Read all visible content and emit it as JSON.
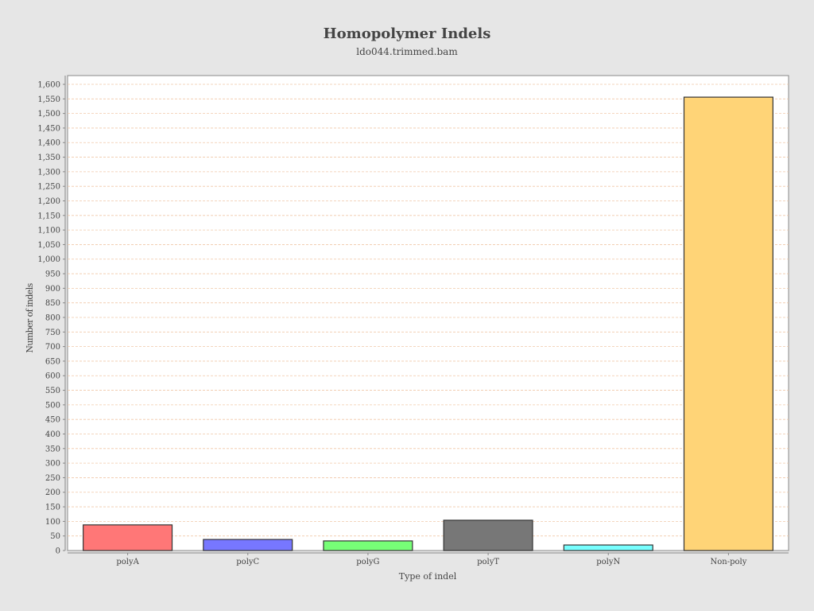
{
  "chart_data": {
    "type": "bar",
    "title": "Homopolymer Indels",
    "subtitle": "ldo044.trimmed.bam",
    "xlabel": "Type of indel",
    "ylabel": "Number of indels",
    "categories": [
      "polyA",
      "polyC",
      "polyG",
      "polyT",
      "polyN",
      "Non-poly"
    ],
    "values": [
      88,
      38,
      33,
      104,
      19,
      1556
    ],
    "colors": [
      "#ff7777",
      "#7777ff",
      "#77ff77",
      "#777777",
      "#77ffff",
      "#ffd477"
    ],
    "bar_border_color": "#333333",
    "ylim": [
      0,
      1630
    ],
    "ytick_step": 50,
    "ytick_labels": [
      "0",
      "50",
      "100",
      "150",
      "200",
      "250",
      "300",
      "350",
      "400",
      "450",
      "500",
      "550",
      "600",
      "650",
      "700",
      "750",
      "800",
      "850",
      "900",
      "950",
      "1,000",
      "1,050",
      "1,100",
      "1,150",
      "1,200",
      "1,250",
      "1,300",
      "1,350",
      "1,400",
      "1,450",
      "1,500",
      "1,550",
      "1,600"
    ],
    "grid": true,
    "grid_color": "#f0c8a8",
    "plot_background": "#ffffff",
    "page_background": "#e6e6e6",
    "legend": "none"
  }
}
